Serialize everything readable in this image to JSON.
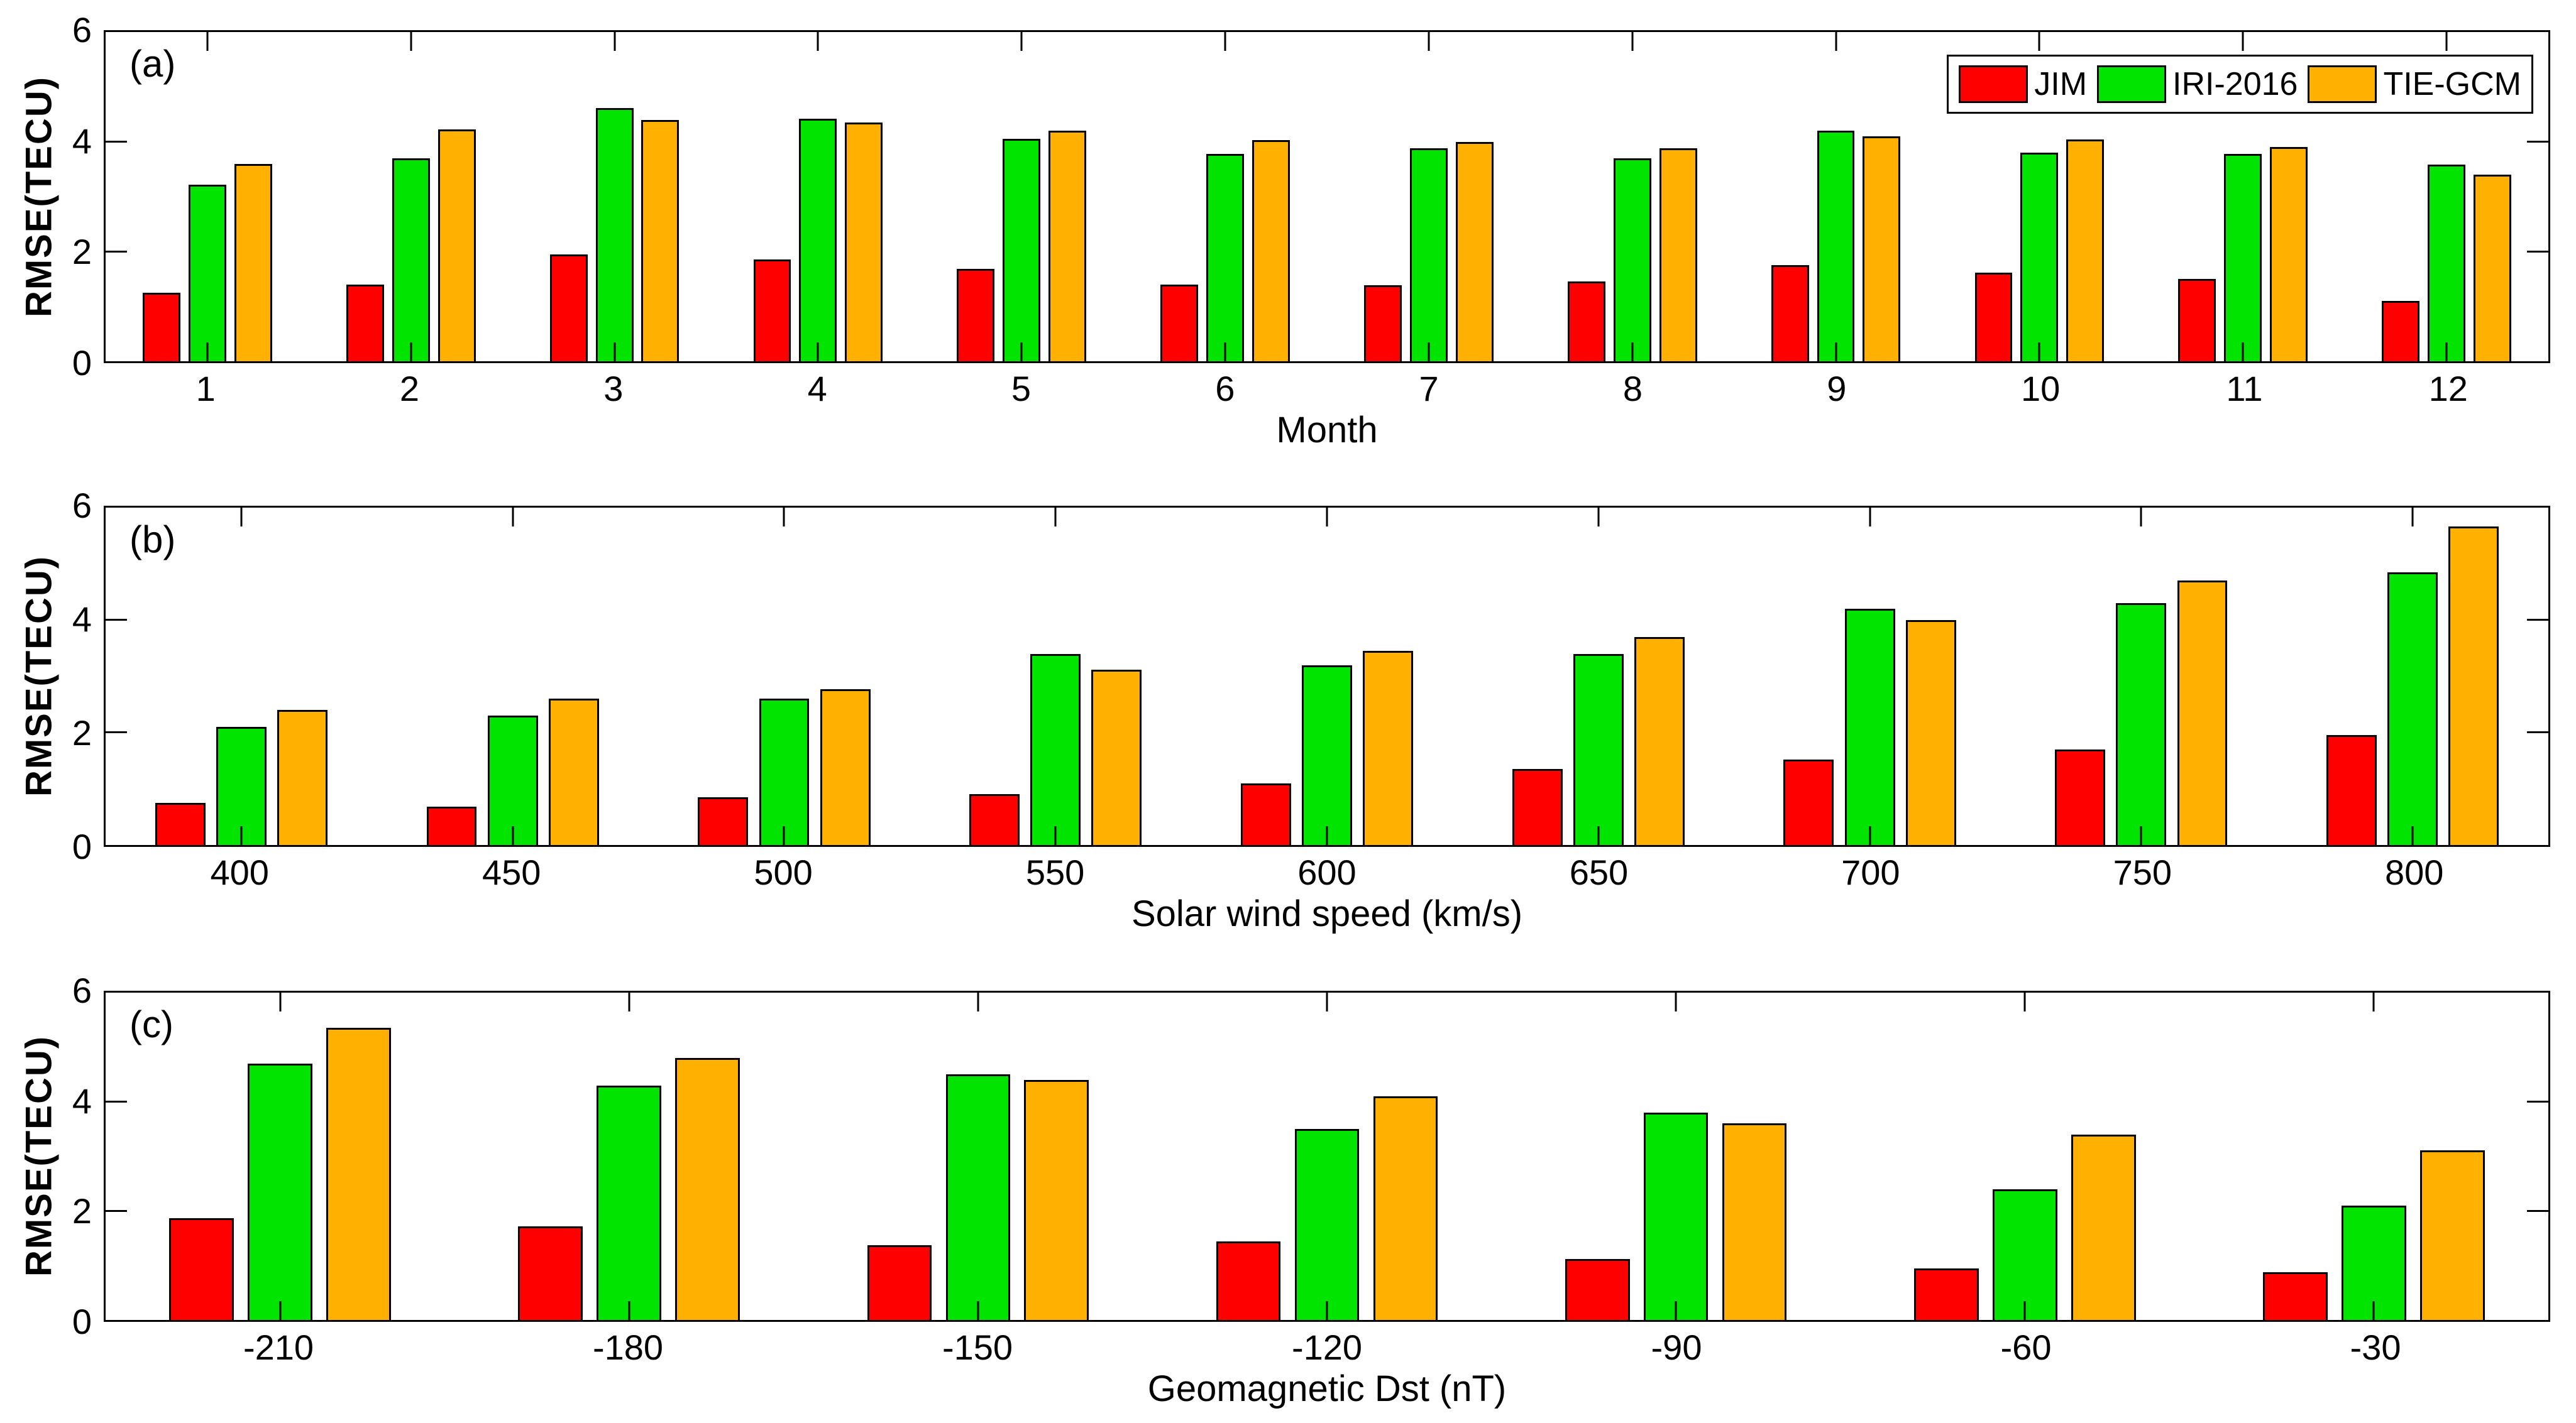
{
  "figure": {
    "background_color": "#ffffff",
    "frame_color": "#000000",
    "ylabel": "RMSE(TECU)",
    "legend": {
      "position": "top-right of panel (a)",
      "items": [
        {
          "label": "JIM",
          "color": "#ff0000"
        },
        {
          "label": "IRI-2016",
          "color": "#00e400"
        },
        {
          "label": "TIE-GCM",
          "color": "#ffb000"
        }
      ]
    }
  },
  "chart_data": [
    {
      "type": "bar",
      "panel_label": "(a)",
      "xlabel": "Month",
      "ylabel": "RMSE(TECU)",
      "ylim": [
        0,
        6
      ],
      "yticks": [
        0,
        2,
        4,
        6
      ],
      "grid": false,
      "legend_visible": true,
      "categories": [
        "1",
        "2",
        "3",
        "4",
        "5",
        "6",
        "7",
        "8",
        "9",
        "10",
        "11",
        "12"
      ],
      "series": [
        {
          "name": "JIM",
          "color": "#ff0000",
          "values": [
            1.25,
            1.4,
            1.95,
            1.85,
            1.68,
            1.4,
            1.38,
            1.45,
            1.75,
            1.62,
            1.5,
            1.1
          ]
        },
        {
          "name": "IRI-2016",
          "color": "#00e400",
          "values": [
            3.22,
            3.7,
            4.62,
            4.42,
            4.05,
            3.78,
            3.88,
            3.7,
            4.2,
            3.8,
            3.78,
            3.58
          ]
        },
        {
          "name": "TIE-GCM",
          "color": "#ffb000",
          "values": [
            3.6,
            4.22,
            4.4,
            4.35,
            4.2,
            4.03,
            4.0,
            3.88,
            4.1,
            4.04,
            3.9,
            3.4
          ]
        }
      ]
    },
    {
      "type": "bar",
      "panel_label": "(b)",
      "xlabel": "Solar wind speed (km/s)",
      "ylabel": "RMSE(TECU)",
      "ylim": [
        0,
        6
      ],
      "yticks": [
        0,
        2,
        4,
        6
      ],
      "grid": false,
      "legend_visible": false,
      "categories": [
        "400",
        "450",
        "500",
        "550",
        "600",
        "650",
        "700",
        "750",
        "800"
      ],
      "series": [
        {
          "name": "JIM",
          "color": "#ff0000",
          "values": [
            0.75,
            0.68,
            0.85,
            0.9,
            1.1,
            1.35,
            1.52,
            1.7,
            1.95
          ]
        },
        {
          "name": "IRI-2016",
          "color": "#00e400",
          "values": [
            2.1,
            2.3,
            2.6,
            3.4,
            3.2,
            3.4,
            4.2,
            4.3,
            4.85
          ]
        },
        {
          "name": "TIE-GCM",
          "color": "#ffb000",
          "values": [
            2.4,
            2.6,
            2.77,
            3.12,
            3.45,
            3.7,
            4.0,
            4.7,
            5.67
          ]
        }
      ]
    },
    {
      "type": "bar",
      "panel_label": "(c)",
      "xlabel": "Geomagnetic Dst (nT)",
      "ylabel": "RMSE(TECU)",
      "ylim": [
        0,
        6
      ],
      "yticks": [
        0,
        2,
        4,
        6
      ],
      "grid": false,
      "legend_visible": false,
      "categories": [
        "-210",
        "-180",
        "-150",
        "-120",
        "-90",
        "-60",
        "-30"
      ],
      "series": [
        {
          "name": "JIM",
          "color": "#ff0000",
          "values": [
            1.87,
            1.72,
            1.37,
            1.44,
            1.12,
            0.94,
            0.87
          ]
        },
        {
          "name": "IRI-2016",
          "color": "#00e400",
          "values": [
            4.7,
            4.3,
            4.5,
            3.5,
            3.8,
            2.4,
            2.1
          ]
        },
        {
          "name": "TIE-GCM",
          "color": "#ffb000",
          "values": [
            5.36,
            4.8,
            4.4,
            4.1,
            3.6,
            3.4,
            3.11
          ]
        }
      ]
    }
  ]
}
